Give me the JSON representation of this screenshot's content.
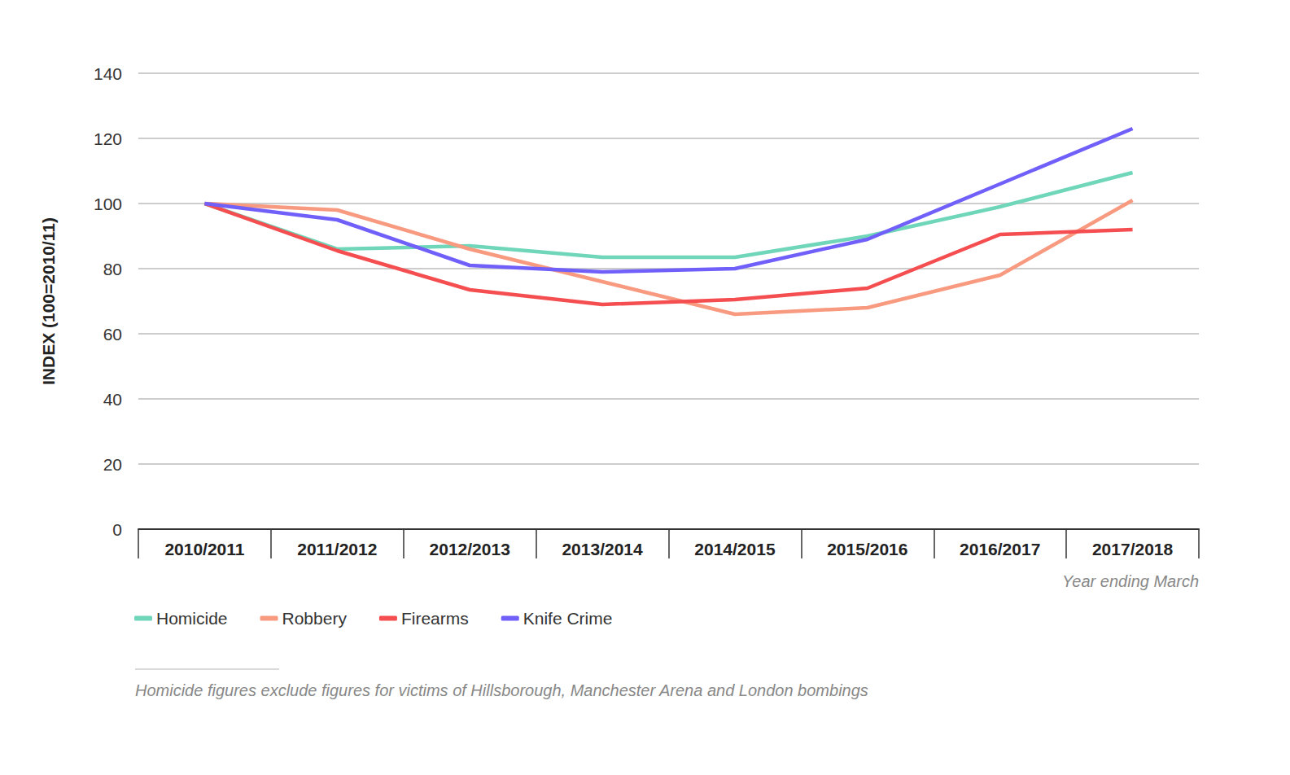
{
  "chart_data": {
    "type": "line",
    "y_label": "INDEX (100=2010/11)",
    "x_label": "Year ending March",
    "footnote": "Homicide figures exclude figures for victims of Hillsborough, Manchester Arena and London bombings",
    "categories": [
      "2010/2011",
      "2011/2012",
      "2012/2013",
      "2013/2014",
      "2014/2015",
      "2015/2016",
      "2016/2017",
      "2017/2018"
    ],
    "series": [
      {
        "name": "Homicide",
        "color": "#6fd6b9",
        "values": [
          100,
          86,
          87,
          83.5,
          83.5,
          90,
          99,
          109.5
        ]
      },
      {
        "name": "Robbery",
        "color": "#f89a80",
        "values": [
          100,
          98,
          86,
          76,
          66,
          68,
          78,
          101
        ]
      },
      {
        "name": "Firearms",
        "color": "#f44e50",
        "values": [
          100,
          85.5,
          73.5,
          69,
          70.5,
          74,
          90.5,
          92
        ]
      },
      {
        "name": "Knife Crime",
        "color": "#7060f9",
        "values": [
          100,
          95,
          81,
          79,
          80,
          89,
          106,
          123
        ]
      }
    ],
    "ylim": [
      0,
      140
    ],
    "yticks": [
      0,
      20,
      40,
      60,
      80,
      100,
      120,
      140
    ],
    "grid": true,
    "legend": "bottom-left"
  }
}
